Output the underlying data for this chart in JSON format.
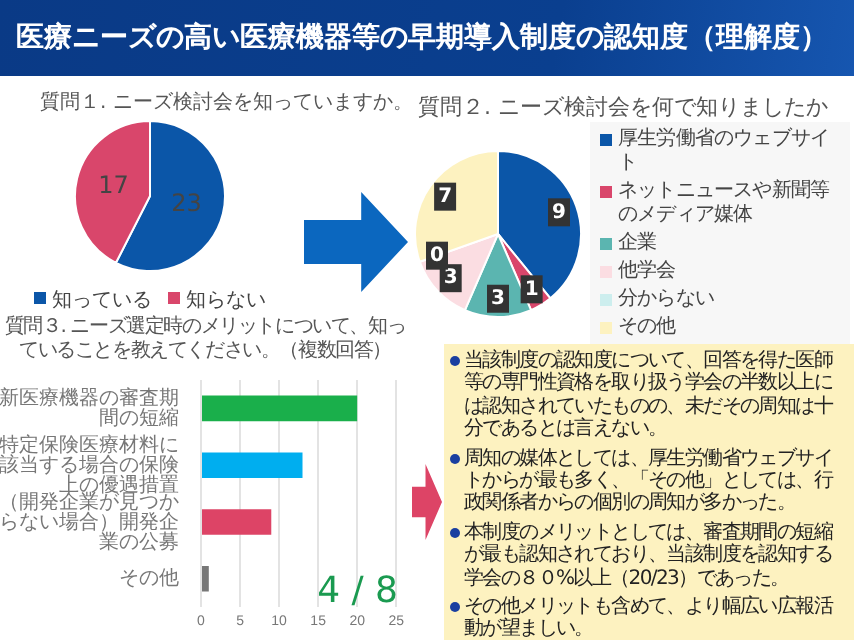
{
  "chart_data": [
    {
      "type": "pie",
      "title": "質問１. ニーズ検討会を知っていますか。",
      "categories": [
        "知っている",
        "知らない"
      ],
      "values": [
        23,
        17
      ],
      "colors": [
        "#0b56a8",
        "#d9466b"
      ],
      "data_labels": true,
      "legend": "bottom"
    },
    {
      "type": "pie",
      "title": "質問２. ニーズ検討会を何で知りましたか",
      "categories": [
        "厚生労働省のウェブサイト",
        "ネットニュースや新聞等のメディア媒体",
        "企業",
        "他学会",
        "分からない",
        "その他"
      ],
      "values": [
        9,
        1,
        3,
        3,
        0,
        7
      ],
      "value_labels": [
        "9",
        "1",
        "3",
        "3",
        "0",
        "7"
      ],
      "colors": [
        "#0b56a8",
        "#d9466b",
        "#5bb5b0",
        "#fbdde2",
        "#cdeeee",
        "#fdf2c0"
      ],
      "legend": "right"
    },
    {
      "type": "bar",
      "orientation": "horizontal",
      "title": "質問３. ニーズ選定時のメリットについて、知っていることを教えてください。（複数回答）",
      "categories": [
        "新医療機器の審査期間の短縮",
        "特定保険医療材料に該当する場合の保険上の優遇措置",
        "（開発企業が見つからない場合）開発企業の公募",
        "その他"
      ],
      "values": [
        20,
        13,
        9,
        1
      ],
      "colors": [
        "#1aaf4b",
        "#00aeef",
        "#dd4466",
        "#777777"
      ],
      "xlim": [
        0,
        25
      ],
      "xticks": [
        0,
        5,
        10,
        15,
        20,
        25
      ],
      "grid": "x",
      "legend": false,
      "annotations": [
        "4 / 8"
      ]
    },
    {
      "type": "other",
      "title": "医療ニーズの高い医療機器等の早期導入制度の認知度（理解度）",
      "annotations": [
        "当該制度の認知度について、回答を得た医師等の専門性資格を取り扱う学会の半数以上には認知されていたものの、未だその周知は十分であるとは言えない。",
        "周知の媒体としては、厚生労働省ウェブサイトからが最も多く、「その他」としては、行政関係者からの個別の周知が多かった。",
        "本制度のメリットとしては、審査期間の短縮が最も認知されており、当該制度を認知する学会の８０%以上（20/23）であった。",
        "その他メリットも含めて、より幅広い広報活動が望ましい。"
      ]
    }
  ]
}
